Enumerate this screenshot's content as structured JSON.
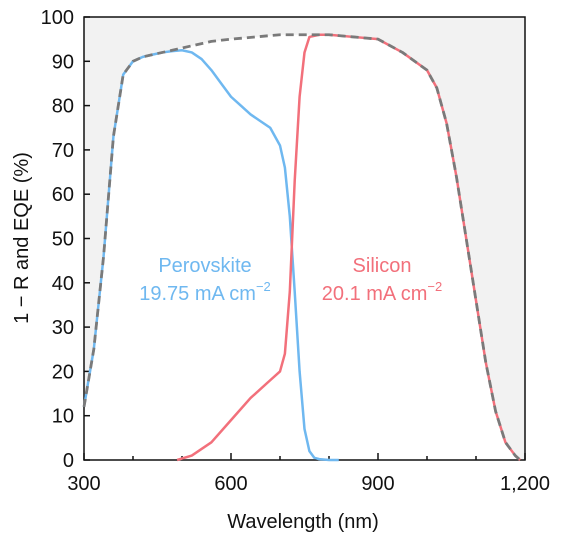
{
  "chart_data": {
    "type": "line",
    "xlabel": "Wavelength (nm)",
    "ylabel": "1 − R and EQE (%)",
    "xlim": [
      300,
      1200
    ],
    "ylim": [
      0,
      100
    ],
    "x_ticks": [
      300,
      600,
      900,
      1200
    ],
    "x_tick_labels": [
      "300",
      "600",
      "900",
      "1,200"
    ],
    "y_ticks": [
      0,
      10,
      20,
      30,
      40,
      50,
      60,
      70,
      80,
      90,
      100
    ],
    "y_tick_labels": [
      "0",
      "10",
      "20",
      "30",
      "40",
      "50",
      "60",
      "70",
      "80",
      "90",
      "100"
    ],
    "grid": false,
    "colors": {
      "perovskite": "#6fb8f0",
      "silicon": "#f2707b",
      "one_minus_r": "#7a7a7a",
      "shade": "#f2f2f2",
      "axis": "#111111"
    },
    "series": [
      {
        "name": "Perovskite",
        "annotation_line1": "Perovskite",
        "annotation_line2": "19.75 mA cm",
        "annotation_sup": "−2",
        "x": [
          300,
          320,
          340,
          360,
          380,
          400,
          420,
          440,
          460,
          480,
          500,
          520,
          540,
          560,
          580,
          600,
          620,
          640,
          660,
          680,
          700,
          710,
          720,
          730,
          740,
          750,
          760,
          770,
          780,
          800,
          820
        ],
        "values": [
          12,
          25,
          46,
          73,
          87,
          90,
          91,
          91.5,
          92,
          92.3,
          92.5,
          92,
          90.5,
          88,
          85,
          82,
          80,
          78,
          76.5,
          75,
          71,
          66,
          55,
          38,
          20,
          7,
          2,
          0.5,
          0.2,
          0,
          0
        ]
      },
      {
        "name": "Silicon",
        "annotation_line1": "Silicon",
        "annotation_line2": "20.1 mA cm",
        "annotation_sup": "−2",
        "x": [
          490,
          520,
          560,
          600,
          640,
          680,
          700,
          710,
          720,
          730,
          740,
          750,
          760,
          780,
          800,
          850,
          900,
          950,
          1000,
          1020,
          1040,
          1060,
          1080,
          1100,
          1120,
          1140,
          1160,
          1180,
          1190
        ],
        "values": [
          0,
          1,
          4,
          9,
          14,
          18,
          20,
          24,
          38,
          63,
          82,
          92,
          95.5,
          96,
          96,
          95.5,
          95,
          92,
          88,
          84,
          76,
          64,
          50,
          36,
          22,
          11,
          4,
          1,
          0
        ]
      },
      {
        "name": "1 − R",
        "x": [
          300,
          320,
          340,
          360,
          380,
          400,
          420,
          440,
          460,
          480,
          500,
          520,
          540,
          560,
          600,
          650,
          700,
          750,
          780,
          800,
          850,
          900,
          950,
          1000,
          1020,
          1040,
          1060,
          1080,
          1100,
          1120,
          1140,
          1160,
          1180,
          1190
        ],
        "values": [
          12,
          25,
          46,
          73,
          87,
          90,
          91,
          91.5,
          92,
          92.5,
          93,
          93.5,
          94,
          94.5,
          95,
          95.5,
          96,
          96,
          96,
          96,
          95.5,
          95,
          92,
          88,
          84,
          76,
          64,
          50,
          36,
          22,
          11,
          4,
          1,
          0
        ]
      }
    ]
  }
}
